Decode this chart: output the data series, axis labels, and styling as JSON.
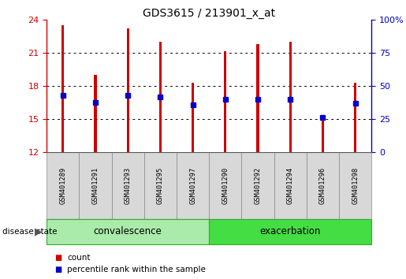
{
  "title": "GDS3615 / 213901_x_at",
  "samples": [
    "GSM401289",
    "GSM401291",
    "GSM401293",
    "GSM401295",
    "GSM401297",
    "GSM401290",
    "GSM401292",
    "GSM401294",
    "GSM401296",
    "GSM401298"
  ],
  "bar_tops": [
    23.5,
    19.0,
    23.2,
    22.0,
    18.3,
    21.1,
    21.8,
    22.0,
    14.9,
    18.3
  ],
  "bar_bottom": 12,
  "blue_dots_left": [
    17.1,
    16.5,
    17.1,
    17.0,
    16.3,
    16.8,
    16.8,
    16.8,
    15.1,
    16.4
  ],
  "bar_color": "#cc0000",
  "dot_color": "#0000cc",
  "ylim_left": [
    12,
    24
  ],
  "ylim_right": [
    0,
    100
  ],
  "yticks_left": [
    12,
    15,
    18,
    21,
    24
  ],
  "yticks_right": [
    0,
    25,
    50,
    75,
    100
  ],
  "ytick_labels_right": [
    "0",
    "25",
    "50",
    "75",
    "100%"
  ],
  "groups": [
    {
      "label": "convalescence",
      "start": 0,
      "end": 5,
      "color": "#aaeaaa"
    },
    {
      "label": "exacerbation",
      "start": 5,
      "end": 10,
      "color": "#44dd44"
    }
  ],
  "disease_state_label": "disease state",
  "title_fontsize": 10,
  "tick_fontsize": 8,
  "bar_width": 0.08,
  "dot_size": 5,
  "convalescence_color": "#aaeaaa",
  "exacerbation_color": "#44dd44",
  "group_border_color": "#33aa33",
  "sample_box_color": "#d8d8d8",
  "sample_box_border": "#888888"
}
